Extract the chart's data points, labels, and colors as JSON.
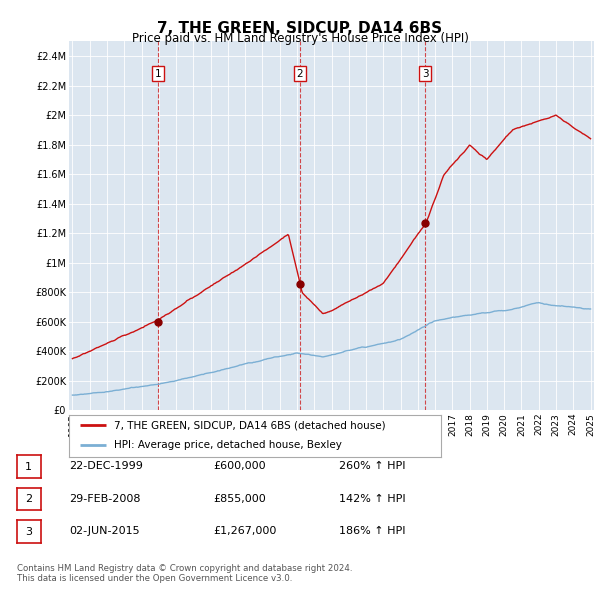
{
  "title": "7, THE GREEN, SIDCUP, DA14 6BS",
  "subtitle": "Price paid vs. HM Land Registry's House Price Index (HPI)",
  "bg_color": "#dce6f0",
  "hpi_line_color": "#7bafd4",
  "price_line_color": "#cc1111",
  "ylabel_ticks": [
    "£0",
    "£200K",
    "£400K",
    "£600K",
    "£800K",
    "£1M",
    "£1.2M",
    "£1.4M",
    "£1.6M",
    "£1.8M",
    "£2M",
    "£2.2M",
    "£2.4M"
  ],
  "ytick_values": [
    0,
    200000,
    400000,
    600000,
    800000,
    1000000,
    1200000,
    1400000,
    1600000,
    1800000,
    2000000,
    2200000,
    2400000
  ],
  "xlim": [
    1994.8,
    2025.2
  ],
  "ylim": [
    0,
    2500000
  ],
  "xtick_years": [
    1995,
    1996,
    1997,
    1998,
    1999,
    2000,
    2001,
    2002,
    2003,
    2004,
    2005,
    2006,
    2007,
    2008,
    2009,
    2010,
    2011,
    2012,
    2013,
    2014,
    2015,
    2016,
    2017,
    2018,
    2019,
    2020,
    2021,
    2022,
    2023,
    2024,
    2025
  ],
  "sale1": {
    "year": 1999.97,
    "price": 600000,
    "label": "1"
  },
  "sale2": {
    "year": 2008.16,
    "price": 855000,
    "label": "2"
  },
  "sale3": {
    "year": 2015.42,
    "price": 1267000,
    "label": "3"
  },
  "legend_line1": "7, THE GREEN, SIDCUP, DA14 6BS (detached house)",
  "legend_line2": "HPI: Average price, detached house, Bexley",
  "footer": "Contains HM Land Registry data © Crown copyright and database right 2024.\nThis data is licensed under the Open Government Licence v3.0.",
  "table_rows": [
    {
      "num": "1",
      "date": "22-DEC-1999",
      "price": "£600,000",
      "pct": "260% ↑ HPI"
    },
    {
      "num": "2",
      "date": "29-FEB-2008",
      "price": "£855,000",
      "pct": "142% ↑ HPI"
    },
    {
      "num": "3",
      "date": "02-JUN-2015",
      "price": "£1,267,000",
      "pct": "186% ↑ HPI"
    }
  ]
}
